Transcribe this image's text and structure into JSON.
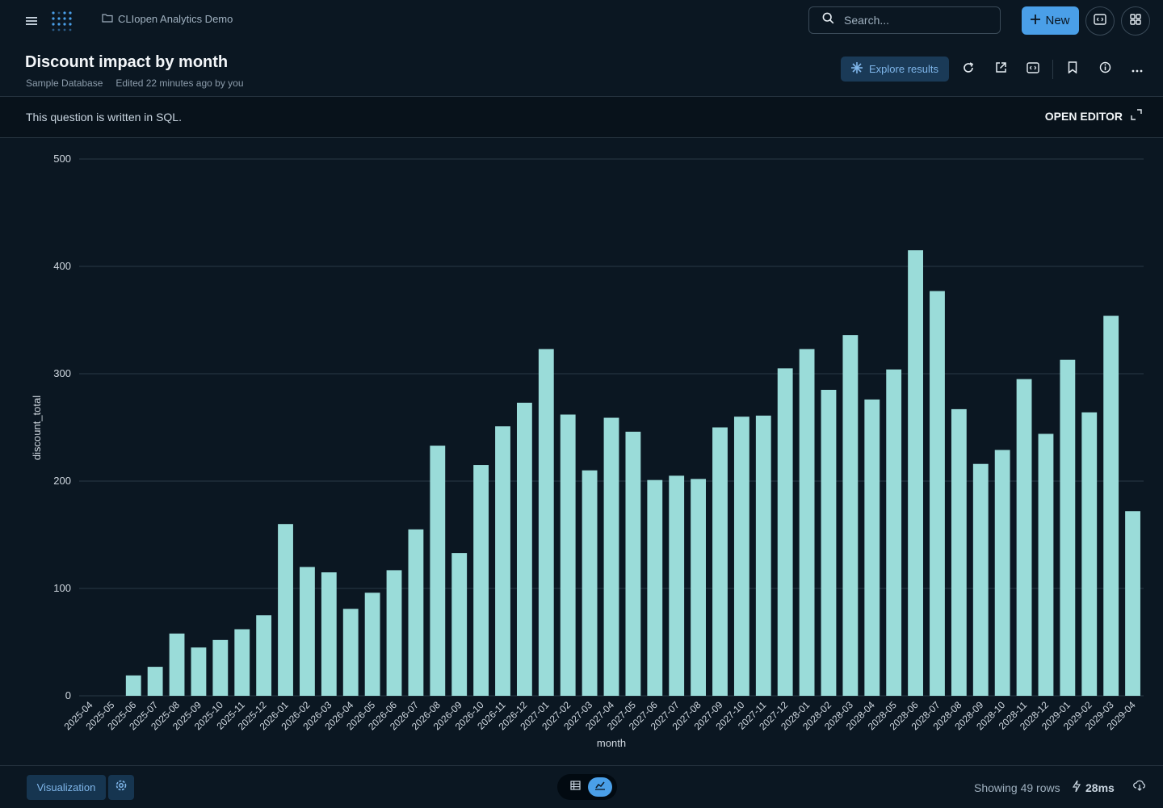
{
  "header": {
    "collection": "CLIopen Analytics Demo",
    "search_placeholder": "Search...",
    "new_label": "New"
  },
  "question": {
    "title": "Discount impact by month",
    "database": "Sample Database",
    "edited": "Edited 22 minutes ago by you",
    "explore_label": "Explore results"
  },
  "sql_bar": {
    "notice": "This question is written in SQL.",
    "open_editor": "OPEN EDITOR"
  },
  "footer": {
    "visualization_label": "Visualization",
    "rows_label": "Showing 49 rows",
    "time_label": "28ms"
  },
  "colors": {
    "background": "#0b1722",
    "bar": "#9adcd9",
    "accent": "#4a9fe8"
  },
  "chart_data": {
    "type": "bar",
    "xlabel": "month",
    "ylabel": "discount_total",
    "ylim": [
      0,
      500
    ],
    "yticks": [
      0,
      100,
      200,
      300,
      400,
      500
    ],
    "grid": true,
    "categories": [
      "2025-04",
      "2025-05",
      "2025-06",
      "2025-07",
      "2025-08",
      "2025-09",
      "2025-10",
      "2025-11",
      "2025-12",
      "2026-01",
      "2026-02",
      "2026-03",
      "2026-04",
      "2026-05",
      "2026-06",
      "2026-07",
      "2026-08",
      "2026-09",
      "2026-10",
      "2026-11",
      "2026-12",
      "2027-01",
      "2027-02",
      "2027-03",
      "2027-04",
      "2027-05",
      "2027-06",
      "2027-07",
      "2027-08",
      "2027-09",
      "2027-10",
      "2027-11",
      "2027-12",
      "2028-01",
      "2028-02",
      "2028-03",
      "2028-04",
      "2028-05",
      "2028-06",
      "2028-07",
      "2028-08",
      "2028-09",
      "2028-10",
      "2028-11",
      "2028-12",
      "2029-01",
      "2029-02",
      "2029-03",
      "2029-04"
    ],
    "values": [
      0,
      0,
      19,
      27,
      58,
      45,
      52,
      62,
      75,
      160,
      120,
      115,
      81,
      96,
      117,
      155,
      233,
      133,
      215,
      251,
      273,
      323,
      262,
      210,
      259,
      246,
      201,
      205,
      202,
      250,
      260,
      261,
      305,
      323,
      285,
      336,
      276,
      304,
      415,
      377,
      267,
      216,
      229,
      295,
      244,
      313,
      264,
      354,
      172
    ]
  }
}
